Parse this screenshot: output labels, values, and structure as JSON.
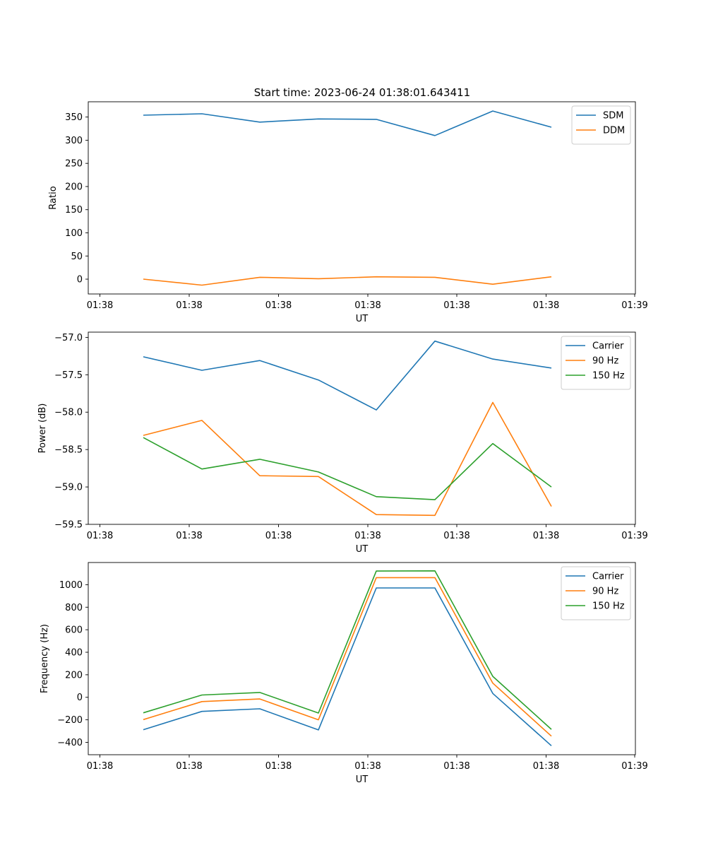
{
  "figure": {
    "title": "Start time: 2023-06-24 01:38:01.643411"
  },
  "chart_data": [
    {
      "type": "line",
      "title": "Start time: 2023-06-24 01:38:01.643411",
      "xlabel": "UT",
      "ylabel": "Ratio",
      "xticklabels": [
        "01:38",
        "01:38",
        "01:38",
        "01:38",
        "01:38",
        "01:38",
        "01:39"
      ],
      "ylim": [
        -32,
        383
      ],
      "yticks": [
        0,
        50,
        100,
        150,
        200,
        250,
        300,
        350
      ],
      "legend": "upper-right",
      "grid": false,
      "series": [
        {
          "name": "SDM",
          "color": "#1f77b4",
          "values": [
            354,
            357,
            339,
            346,
            345,
            310,
            363,
            328
          ]
        },
        {
          "name": "DDM",
          "color": "#ff7f0e",
          "values": [
            0,
            -13,
            4,
            1,
            5,
            4,
            -11,
            5
          ]
        }
      ]
    },
    {
      "type": "line",
      "xlabel": "UT",
      "ylabel": "Power (dB)",
      "xticklabels": [
        "01:38",
        "01:38",
        "01:38",
        "01:38",
        "01:38",
        "01:38",
        "01:39"
      ],
      "ylim": [
        -59.5,
        -56.93
      ],
      "yticks": [
        -59.5,
        -59.0,
        -58.5,
        -58.0,
        -57.5,
        -57.0
      ],
      "yticklabels": [
        "−59.5",
        "−59.0",
        "−58.5",
        "−58.0",
        "−57.5",
        "−57.0"
      ],
      "legend": "upper-right",
      "grid": false,
      "series": [
        {
          "name": "Carrier",
          "color": "#1f77b4",
          "values": [
            -57.26,
            -57.44,
            -57.31,
            -57.57,
            -57.97,
            -57.05,
            -57.29,
            -57.41
          ]
        },
        {
          "name": "90 Hz",
          "color": "#ff7f0e",
          "values": [
            -58.31,
            -58.11,
            -58.85,
            -58.86,
            -59.37,
            -59.38,
            -57.87,
            -59.26
          ]
        },
        {
          "name": "150 Hz",
          "color": "#2ca02c",
          "values": [
            -58.34,
            -58.76,
            -58.63,
            -58.8,
            -59.13,
            -59.17,
            -58.42,
            -59.0
          ]
        }
      ]
    },
    {
      "type": "line",
      "xlabel": "UT",
      "ylabel": "Frequency (Hz)",
      "xticklabels": [
        "01:38",
        "01:38",
        "01:38",
        "01:38",
        "01:38",
        "01:38",
        "01:39"
      ],
      "ylim": [
        -510,
        1197
      ],
      "yticks": [
        -400,
        -200,
        0,
        200,
        400,
        600,
        800,
        1000
      ],
      "yticklabels": [
        "−400",
        "−200",
        "0",
        "200",
        "400",
        "600",
        "800",
        "1000"
      ],
      "legend": "upper-right",
      "grid": false,
      "series": [
        {
          "name": "Carrier",
          "color": "#1f77b4",
          "values": [
            -288,
            -125,
            -102,
            -290,
            971,
            971,
            34,
            -430
          ]
        },
        {
          "name": "90 Hz",
          "color": "#ff7f0e",
          "values": [
            -198,
            -38,
            -15,
            -200,
            1063,
            1063,
            126,
            -345
          ]
        },
        {
          "name": "150 Hz",
          "color": "#2ca02c",
          "values": [
            -138,
            20,
            43,
            -140,
            1121,
            1123,
            186,
            -285
          ]
        }
      ]
    }
  ]
}
